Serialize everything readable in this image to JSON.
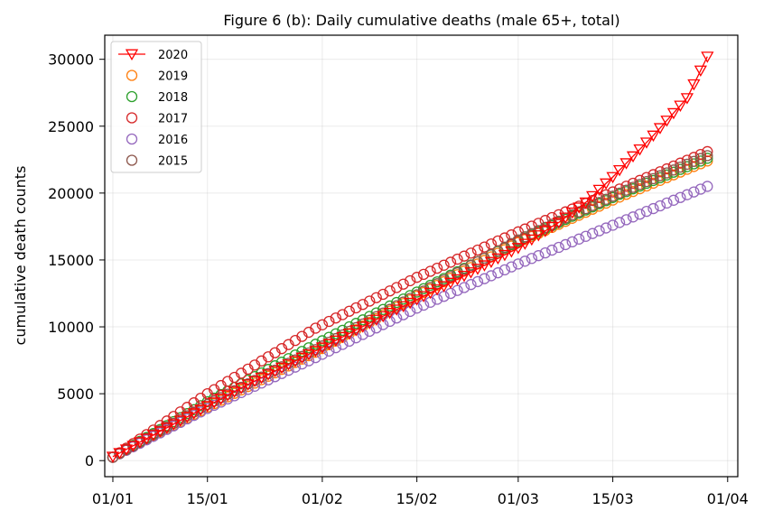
{
  "chart_data": {
    "type": "line",
    "title": "Figure 6 (b): Daily cumulative deaths (male 65+, total)",
    "xlabel": "",
    "ylabel": "cumulative death counts",
    "x_axis": {
      "min_day": 0,
      "max_day": 91,
      "ticks": [
        {
          "day": 0,
          "label": "01/01"
        },
        {
          "day": 14,
          "label": "15/01"
        },
        {
          "day": 31,
          "label": "01/02"
        },
        {
          "day": 45,
          "label": "15/02"
        },
        {
          "day": 60,
          "label": "01/03"
        },
        {
          "day": 74,
          "label": "15/03"
        },
        {
          "day": 91,
          "label": "01/04"
        }
      ]
    },
    "y_axis": {
      "min": -1200,
      "max": 31800,
      "ticks": [
        0,
        5000,
        10000,
        15000,
        20000,
        25000,
        30000
      ]
    },
    "grid": true,
    "legend_position": "top-left",
    "series": [
      {
        "name": "2020",
        "color": "#ff0000",
        "marker": "triangle-down",
        "line": true,
        "days": 89,
        "points": [
          [
            0,
            300
          ],
          [
            10,
            3000
          ],
          [
            20,
            5700
          ],
          [
            30,
            8200
          ],
          [
            40,
            10800
          ],
          [
            50,
            13300
          ],
          [
            60,
            15900
          ],
          [
            66,
            17800
          ],
          [
            70,
            19300
          ],
          [
            74,
            21200
          ],
          [
            80,
            24300
          ],
          [
            85,
            27100
          ],
          [
            88,
            30200
          ]
        ]
      },
      {
        "name": "2019",
        "color": "#ff7f0e",
        "marker": "circle-open",
        "line": false,
        "days": 89,
        "points": [
          [
            0,
            250
          ],
          [
            14,
            4000
          ],
          [
            30,
            8100
          ],
          [
            45,
            12300
          ],
          [
            60,
            16300
          ],
          [
            75,
            19700
          ],
          [
            88,
            22400
          ]
        ]
      },
      {
        "name": "2018",
        "color": "#2ca02c",
        "marker": "circle-open",
        "line": false,
        "days": 89,
        "points": [
          [
            0,
            250
          ],
          [
            14,
            4400
          ],
          [
            30,
            8700
          ],
          [
            45,
            12600
          ],
          [
            60,
            16400
          ],
          [
            75,
            19900
          ],
          [
            88,
            22600
          ]
        ]
      },
      {
        "name": "2017",
        "color": "#d62728",
        "marker": "circle-open",
        "line": false,
        "days": 89,
        "points": [
          [
            0,
            250
          ],
          [
            14,
            5000
          ],
          [
            30,
            9900
          ],
          [
            45,
            13700
          ],
          [
            60,
            17100
          ],
          [
            75,
            20300
          ],
          [
            88,
            23100
          ]
        ]
      },
      {
        "name": "2016",
        "color": "#9467bd",
        "marker": "circle-open",
        "line": false,
        "days": 89,
        "points": [
          [
            0,
            250
          ],
          [
            14,
            3900
          ],
          [
            30,
            7700
          ],
          [
            45,
            11400
          ],
          [
            60,
            14700
          ],
          [
            75,
            17800
          ],
          [
            88,
            20500
          ]
        ]
      },
      {
        "name": "2015",
        "color": "#8c564b",
        "marker": "circle-open",
        "line": false,
        "days": 89,
        "points": [
          [
            0,
            250
          ],
          [
            14,
            4200
          ],
          [
            30,
            8300
          ],
          [
            45,
            12400
          ],
          [
            60,
            16500
          ],
          [
            75,
            20000
          ],
          [
            88,
            22800
          ]
        ]
      }
    ]
  }
}
